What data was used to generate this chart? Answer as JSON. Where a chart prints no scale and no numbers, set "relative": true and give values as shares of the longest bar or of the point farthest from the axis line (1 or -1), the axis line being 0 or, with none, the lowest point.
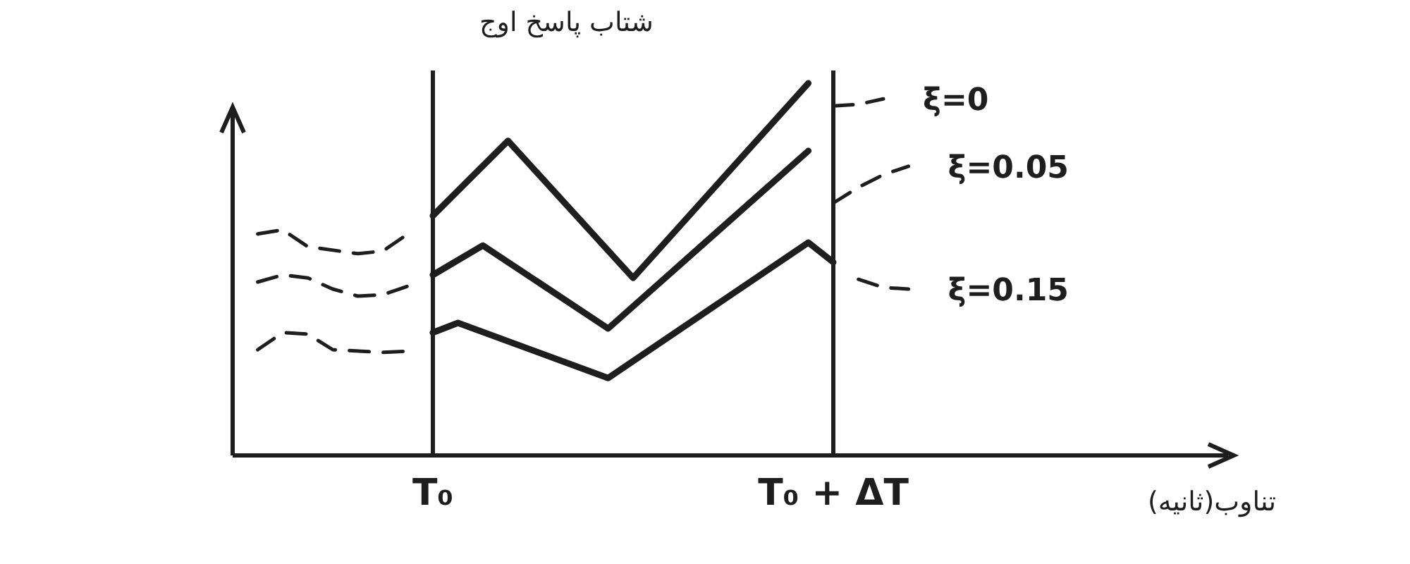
{
  "chart_data": {
    "type": "line",
    "relative": true,
    "ylabel": "شتاب پاسخ اوج",
    "xlabel": "تناوب(ثانیه)",
    "marker": "none",
    "categories": [
      null,
      null,
      null,
      null,
      null,
      null,
      null,
      "T₀",
      null,
      null,
      null,
      null,
      null,
      null,
      null,
      null,
      null,
      null,
      null,
      null,
      null,
      null,
      null,
      "T₀ + ΔT",
      null,
      null,
      null,
      null,
      null,
      null,
      null,
      null,
      null,
      null,
      null,
      null,
      null,
      null,
      null
    ],
    "ref_lines": [
      {
        "axis": "x",
        "value": "T₀"
      },
      {
        "axis": "x",
        "value": "T₀ + ΔT"
      }
    ],
    "series": [
      {
        "color": "#1e1e1e",
        "line_style": "dashed",
        "values": [
          0.595,
          0.606,
          0.561,
          null,
          0.542,
          0.549,
          0.595,
          null,
          null,
          null,
          null,
          null,
          null,
          null,
          null,
          null,
          null,
          null,
          null,
          null,
          null,
          null,
          null,
          null,
          null,
          null,
          null,
          null,
          null,
          null,
          null,
          null,
          null,
          null,
          null,
          null,
          null,
          null,
          null
        ]
      },
      {
        "color": "#1e1e1e",
        "line_style": "solid",
        "values": [
          null,
          null,
          null,
          null,
          null,
          null,
          null,
          0.644,
          null,
          null,
          0.845,
          null,
          null,
          null,
          null,
          0.477,
          null,
          null,
          null,
          null,
          null,
          null,
          1.0,
          null,
          null,
          null,
          null,
          null,
          null,
          null,
          null,
          null,
          null,
          null,
          null,
          null,
          null,
          null,
          null
        ]
      },
      {
        "name": "ξ=0",
        "color": "#1e1e1e",
        "line_style": "dashed",
        "values": [
          null,
          null,
          null,
          null,
          null,
          null,
          null,
          null,
          null,
          null,
          null,
          null,
          null,
          null,
          null,
          null,
          null,
          null,
          null,
          null,
          null,
          null,
          null,
          0.939,
          0.943,
          0.958,
          null,
          null,
          null,
          null,
          null,
          null,
          null,
          null,
          null,
          null,
          null,
          null,
          null
        ]
      },
      {
        "color": "#1e1e1e",
        "line_style": "dashed",
        "values": [
          0.466,
          0.485,
          0.477,
          0.447,
          0.428,
          0.432,
          0.455,
          null,
          null,
          null,
          null,
          null,
          null,
          null,
          null,
          null,
          null,
          null,
          null,
          null,
          null,
          null,
          null,
          null,
          null,
          null,
          null,
          null,
          null,
          null,
          null,
          null,
          null,
          null,
          null,
          null,
          null,
          null,
          null
        ]
      },
      {
        "color": "#1e1e1e",
        "line_style": "solid",
        "values": [
          null,
          null,
          null,
          null,
          null,
          null,
          null,
          0.485,
          null,
          0.564,
          null,
          null,
          null,
          null,
          0.341,
          null,
          null,
          null,
          null,
          null,
          null,
          null,
          0.818,
          null,
          null,
          null,
          null,
          null,
          null,
          null,
          null,
          null,
          null,
          null,
          null,
          null,
          null,
          null,
          null
        ]
      },
      {
        "name": "ξ=0.05",
        "color": "#1e1e1e",
        "line_style": "dashed",
        "values": [
          null,
          null,
          null,
          null,
          null,
          null,
          null,
          null,
          null,
          null,
          null,
          null,
          null,
          null,
          null,
          null,
          null,
          null,
          null,
          null,
          null,
          null,
          null,
          0.678,
          0.72,
          0.754,
          0.777,
          null,
          null,
          null,
          null,
          null,
          null,
          null,
          null,
          null,
          null,
          null,
          null
        ]
      },
      {
        "color": "#1e1e1e",
        "line_style": "dashed",
        "values": [
          0.284,
          0.33,
          0.326,
          0.284,
          null,
          0.277,
          0.28,
          null,
          null,
          null,
          null,
          null,
          null,
          null,
          null,
          null,
          null,
          null,
          null,
          null,
          null,
          null,
          null,
          null,
          null,
          null,
          null,
          null,
          null,
          null,
          null,
          null,
          null,
          null,
          null,
          null,
          null,
          null,
          null
        ]
      },
      {
        "color": "#1e1e1e",
        "line_style": "solid",
        "values": [
          null,
          null,
          null,
          null,
          null,
          null,
          null,
          0.33,
          0.356,
          null,
          null,
          null,
          null,
          null,
          0.208,
          null,
          null,
          null,
          null,
          null,
          null,
          null,
          0.572,
          0.519,
          null,
          null,
          null,
          null,
          null,
          null,
          null,
          null,
          null,
          null,
          null,
          null,
          null,
          null,
          null
        ]
      },
      {
        "name": "ξ=0.15",
        "color": "#1e1e1e",
        "line_style": "dashed",
        "values": [
          null,
          null,
          null,
          null,
          null,
          null,
          null,
          null,
          null,
          null,
          null,
          null,
          null,
          null,
          null,
          null,
          null,
          null,
          null,
          null,
          null,
          null,
          null,
          null,
          0.473,
          0.451,
          0.447,
          null,
          null,
          null,
          null,
          null,
          null,
          null,
          null,
          null,
          null,
          null,
          null
        ]
      }
    ]
  }
}
